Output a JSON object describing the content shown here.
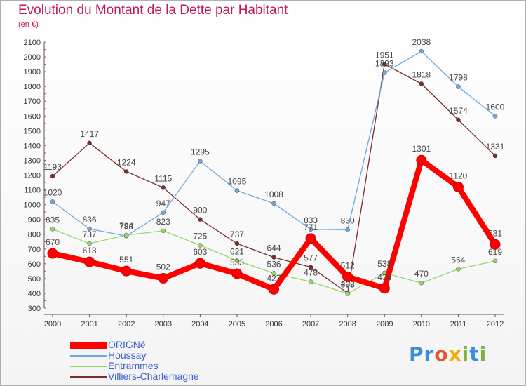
{
  "chart_data": {
    "type": "line",
    "title": "Evolution du Montant de la Dette par Habitant",
    "subtitle": "(en €)",
    "xlabel": "",
    "ylabel": "",
    "categories": [
      "2000",
      "2001",
      "2002",
      "2003",
      "2004",
      "2005",
      "2006",
      "2007",
      "2008",
      "2009",
      "2010",
      "2011",
      "2012"
    ],
    "ylim": [
      300,
      2100
    ],
    "yticks": [
      300,
      400,
      500,
      600,
      700,
      800,
      900,
      1000,
      1100,
      1200,
      1300,
      1400,
      1500,
      1600,
      1700,
      1800,
      1900,
      2000,
      2100
    ],
    "grid": false,
    "legend_position": "bottom-left",
    "series": [
      {
        "name": "ORIGNé",
        "color": "#ff0000",
        "values": [
          670,
          613,
          551,
          502,
          603,
          533,
          427,
          771,
          512,
          434,
          1301,
          1120,
          731
        ]
      },
      {
        "name": "Houssay",
        "color": "#6fa8dc",
        "values": [
          1020,
          836,
          788,
          947,
          1295,
          1095,
          1008,
          833,
          830,
          1893,
          2038,
          1798,
          1600
        ]
      },
      {
        "name": "Entrammes",
        "color": "#93d96b",
        "values": [
          835,
          737,
          794,
          823,
          725,
          621,
          536,
          478,
          398,
          538,
          470,
          564,
          619
        ]
      },
      {
        "name": "Villiers-Charlemagne",
        "color": "#7b2c2c",
        "values": [
          1193,
          1417,
          1224,
          1115,
          900,
          737,
          644,
          577,
          402,
          1951,
          1818,
          1574,
          1331
        ]
      }
    ]
  },
  "logo": {
    "p": "Pr",
    "o": "o",
    "x": "x",
    "i": "i",
    "t": "t",
    "i2": "i"
  }
}
